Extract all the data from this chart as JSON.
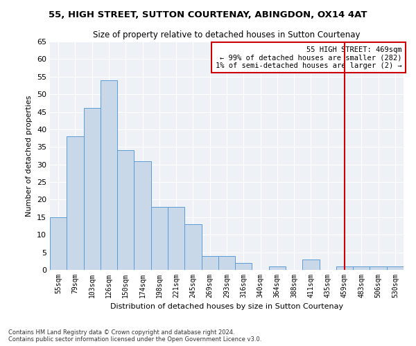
{
  "title": "55, HIGH STREET, SUTTON COURTENAY, ABINGDON, OX14 4AT",
  "subtitle": "Size of property relative to detached houses in Sutton Courtenay",
  "xlabel": "Distribution of detached houses by size in Sutton Courtenay",
  "ylabel": "Number of detached properties",
  "categories": [
    "55sqm",
    "79sqm",
    "103sqm",
    "126sqm",
    "150sqm",
    "174sqm",
    "198sqm",
    "221sqm",
    "245sqm",
    "269sqm",
    "293sqm",
    "316sqm",
    "340sqm",
    "364sqm",
    "388sqm",
    "411sqm",
    "435sqm",
    "459sqm",
    "483sqm",
    "506sqm",
    "530sqm"
  ],
  "values": [
    15,
    38,
    46,
    54,
    34,
    31,
    18,
    18,
    13,
    4,
    4,
    2,
    0,
    1,
    0,
    3,
    0,
    1,
    1,
    1,
    1
  ],
  "bar_color": "#c8d8e8",
  "bar_edge_color": "#5b9bd5",
  "vline_x_index": 17,
  "vline_color": "#cc0000",
  "annotation_text": "55 HIGH STREET: 469sqm\n← 99% of detached houses are smaller (282)\n1% of semi-detached houses are larger (2) →",
  "annotation_box_color": "#cc0000",
  "ylim": [
    0,
    65
  ],
  "yticks": [
    0,
    5,
    10,
    15,
    20,
    25,
    30,
    35,
    40,
    45,
    50,
    55,
    60,
    65
  ],
  "bg_color": "#eef2f7",
  "grid_color": "#ffffff",
  "footer_line1": "Contains HM Land Registry data © Crown copyright and database right 2024.",
  "footer_line2": "Contains public sector information licensed under the Open Government Licence v3.0."
}
